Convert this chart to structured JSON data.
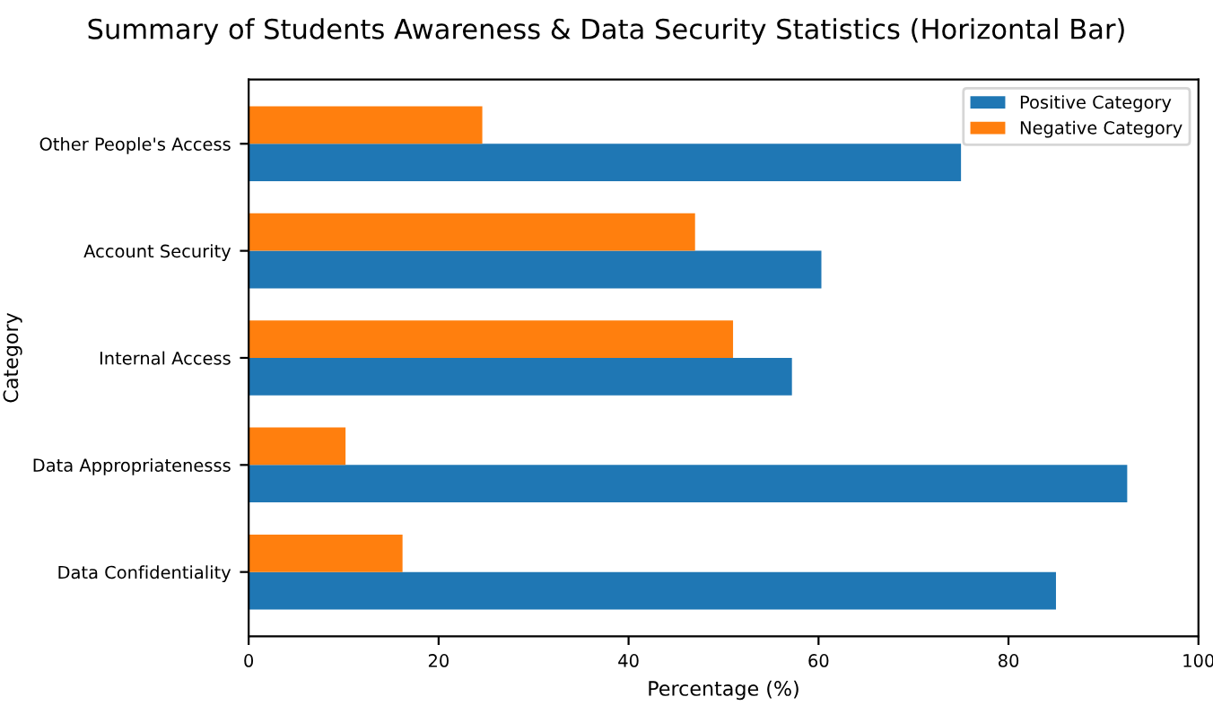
{
  "chart_data": {
    "type": "bar",
    "orientation": "horizontal",
    "title": "Summary of Students Awareness & Data Security Statistics (Horizontal Bar)",
    "xlabel": "Percentage (%)",
    "ylabel": "Category",
    "categories": [
      "Other People's Access",
      "Account Security",
      "Internal Access",
      "Data Appropriatenesss",
      "Data Confidentiality"
    ],
    "series": [
      {
        "name": "Positive Category",
        "color": "#1f77b4",
        "values": [
          75,
          60.3,
          57.2,
          92.5,
          85
        ]
      },
      {
        "name": "Negative Category",
        "color": "#ff7f0e",
        "values": [
          24.6,
          47,
          51,
          10.2,
          16.2
        ]
      }
    ],
    "xlim": [
      0,
      100
    ],
    "xticks": [
      0,
      20,
      40,
      60,
      80,
      100
    ],
    "grid": false,
    "legend": "top right"
  }
}
